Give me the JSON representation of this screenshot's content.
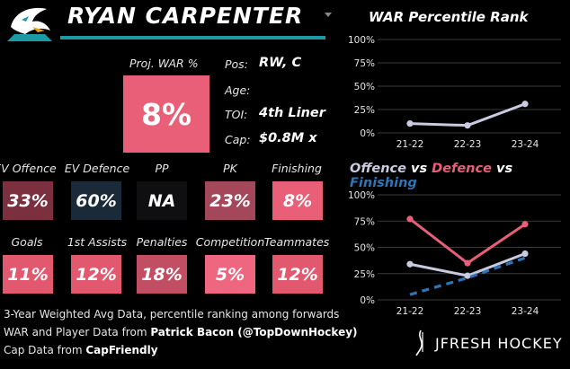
{
  "header": {
    "player_name": "RYAN CARPENTER"
  },
  "war_box": {
    "label": "Proj. WAR %",
    "value": "8%",
    "color": "#e95f77"
  },
  "info": [
    {
      "label": "Pos:",
      "value": "RW, C"
    },
    {
      "label": "Age:",
      "value": ""
    },
    {
      "label": "TOI:",
      "value": "4th Liner"
    },
    {
      "label": "Cap:",
      "value": "$0.8M x"
    }
  ],
  "stats_row1": [
    {
      "label": "EV Offence",
      "value": "33%",
      "color": "#7b2f3f"
    },
    {
      "label": "EV Defence",
      "value": "60%",
      "color": "#1b2a38"
    },
    {
      "label": "PP",
      "value": "NA",
      "color": "#0f0f12"
    },
    {
      "label": "PK",
      "value": "23%",
      "color": "#a5475a"
    },
    {
      "label": "Finishing",
      "value": "8%",
      "color": "#e95f77"
    }
  ],
  "stats_row2": [
    {
      "label": "Goals",
      "value": "11%",
      "color": "#e2586f"
    },
    {
      "label": "1st Assists",
      "value": "12%",
      "color": "#e2586f"
    },
    {
      "label": "Penalties",
      "value": "18%",
      "color": "#c24e63"
    },
    {
      "label": "Competition",
      "value": "5%",
      "color": "#ef6680"
    },
    {
      "label": "Teammates",
      "value": "12%",
      "color": "#e2586f"
    }
  ],
  "footer": {
    "line1": "3-Year Weighted Avg Data, percentile ranking among forwards",
    "line2_prefix": "WAR and Player Data from ",
    "line2_source": "Patrick Bacon (@TopDownHockey)",
    "line3_prefix": "Cap Data from ",
    "line3_source": "CapFriendly"
  },
  "brand": {
    "logo_text": "JFRESH HOCKEY"
  },
  "chart_data": [
    {
      "type": "line",
      "title": "WAR Percentile Rank",
      "x": [
        "21-22",
        "22-23",
        "23-24"
      ],
      "ylim": [
        0,
        100
      ],
      "yticks": [
        "0%",
        "25%",
        "50%",
        "75%",
        "100%"
      ],
      "series": [
        {
          "values": [
            10,
            8,
            31
          ],
          "color": "#c9cbe0",
          "dashed": false
        }
      ]
    },
    {
      "type": "line",
      "title_parts": [
        {
          "text": "Offence",
          "color": "#c9cbe0"
        },
        {
          "text": " vs ",
          "color": "#ffffff"
        },
        {
          "text": "Defence",
          "color": "#e95f77"
        },
        {
          "text": " vs ",
          "color": "#ffffff"
        },
        {
          "text": "Finishing",
          "color": "#2f74b5"
        }
      ],
      "x": [
        "21-22",
        "22-23",
        "23-24"
      ],
      "ylim": [
        0,
        100
      ],
      "yticks": [
        "0%",
        "25%",
        "50%",
        "75%",
        "100%"
      ],
      "series": [
        {
          "name": "Offence",
          "values": [
            34,
            23,
            44
          ],
          "color": "#c9cbe0",
          "dashed": false
        },
        {
          "name": "Defence",
          "values": [
            77,
            35,
            72
          ],
          "color": "#e95f77",
          "dashed": false
        },
        {
          "name": "Finishing",
          "values": [
            5,
            21,
            40
          ],
          "color": "#2f74b5",
          "dashed": true
        }
      ]
    }
  ]
}
